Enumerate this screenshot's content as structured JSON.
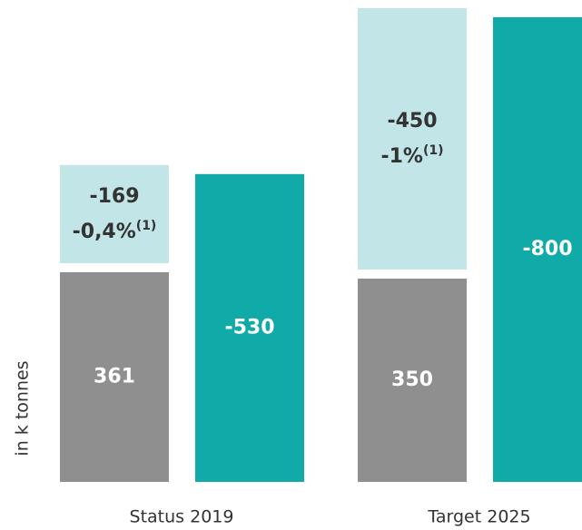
{
  "chart_data": {
    "type": "bar",
    "y_label": "in k tonnes",
    "categories": [
      "Status 2019",
      "Target 2025"
    ],
    "series": [
      {
        "color": "#8f8f8f",
        "values": [
          361,
          350
        ],
        "stack": "a"
      },
      {
        "color": "#c2e5e7",
        "values": [
          -169,
          -450
        ],
        "stack": "a",
        "share_labels": [
          "-0,4%",
          "-1%"
        ],
        "share_notes": [
          "(1)",
          "(1)"
        ]
      },
      {
        "color": "#10aaa8",
        "values": [
          -530,
          -800
        ],
        "stack": "b"
      }
    ]
  }
}
